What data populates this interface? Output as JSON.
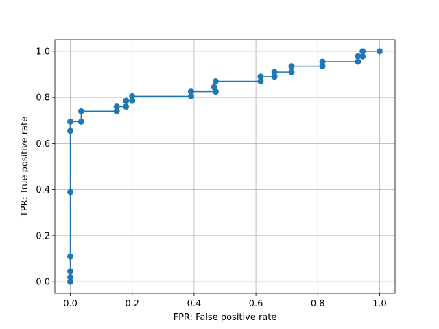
{
  "chart_data": {
    "type": "line",
    "title": "",
    "xlabel": "FPR: False positive rate",
    "ylabel": "TPR: True positive rate",
    "xlim": [
      -0.05,
      1.05
    ],
    "ylim": [
      -0.05,
      1.05
    ],
    "xticks": [
      0.0,
      0.2,
      0.4,
      0.6,
      0.8,
      1.0
    ],
    "yticks": [
      0.0,
      0.2,
      0.4,
      0.6,
      0.8,
      1.0
    ],
    "xtick_labels": [
      "0.0",
      "0.2",
      "0.4",
      "0.6",
      "0.8",
      "1.0"
    ],
    "ytick_labels": [
      "0.0",
      "0.2",
      "0.4",
      "0.6",
      "0.8",
      "1.0"
    ],
    "grid": true,
    "markers": "circle",
    "series": [
      {
        "color": "#1f77b4",
        "x": [
          0.0,
          0.0,
          0.0,
          0.0,
          0.0,
          0.0,
          0.0,
          0.035,
          0.035,
          0.15,
          0.15,
          0.18,
          0.18,
          0.2,
          0.2,
          0.39,
          0.39,
          0.47,
          0.465,
          0.47,
          0.615,
          0.615,
          0.66,
          0.66,
          0.715,
          0.715,
          0.815,
          0.815,
          0.93,
          0.93,
          0.945,
          0.945,
          1.0
        ],
        "y": [
          0.0,
          0.02,
          0.045,
          0.11,
          0.39,
          0.655,
          0.695,
          0.695,
          0.74,
          0.74,
          0.76,
          0.76,
          0.785,
          0.785,
          0.805,
          0.805,
          0.825,
          0.825,
          0.845,
          0.87,
          0.87,
          0.89,
          0.89,
          0.91,
          0.91,
          0.935,
          0.935,
          0.955,
          0.955,
          0.978,
          0.978,
          1.0,
          1.0
        ]
      }
    ]
  }
}
